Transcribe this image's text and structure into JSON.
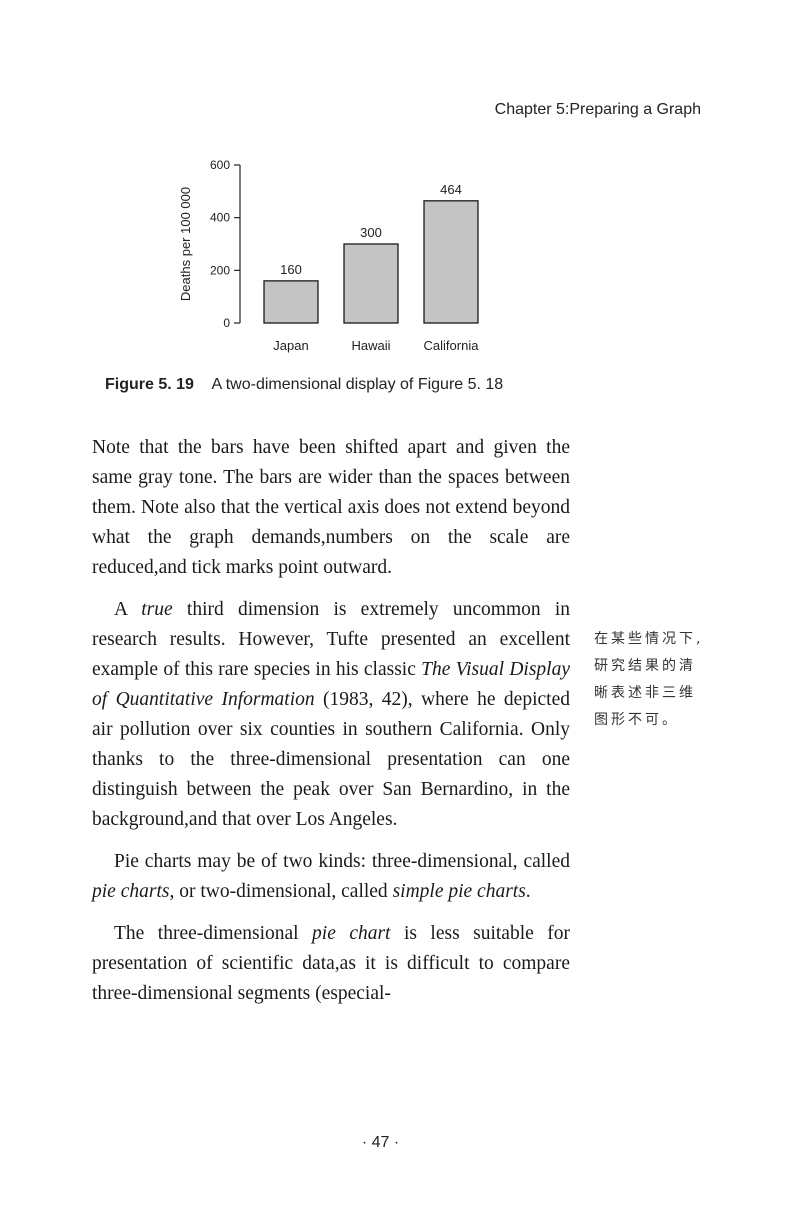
{
  "header": {
    "running_head": "Chapter 5:Preparing a Graph"
  },
  "figure": {
    "label": "Figure 5. 19",
    "caption": "A two-dimensional display of Figure 5. 18"
  },
  "chart_data": {
    "type": "bar",
    "categories": [
      "Japan",
      "Hawaii",
      "California"
    ],
    "values": [
      160,
      300,
      464
    ],
    "data_labels": [
      "160",
      "300",
      "464"
    ],
    "ylabel": "Deaths per 100 000",
    "xlabel": "",
    "ylim": [
      0,
      600
    ],
    "yticks": [
      0,
      200,
      400,
      600
    ],
    "bar_color": "#c4c4c4",
    "grid": false
  },
  "body": {
    "p1": "Note that the bars have been shifted apart and given the same gray tone. The bars are wider than the spaces between them. Note also that the vertical axis does not extend beyond what the graph demands,numbers on the scale are reduced,and tick marks point outward.",
    "p2": {
      "t1": "true",
      "t2": " third dimension is extremely uncommon in research results. However, Tufte presented an excellent example of this rare species in his classic ",
      "t3": "The Visual Display of Quantitative Information",
      "t4": " (1983, 42), where he depicted air pollution over six counties in southern California. Only thanks to the three-dimensional presentation can one distinguish between the peak over San Bernardino, in the background,and that over Los Angeles.",
      "t0": "A "
    },
    "p3": {
      "t0": "Pie charts may be of two kinds: three-dimensional, called ",
      "t1": "pie charts",
      "t2": ", or two-dimensional, called ",
      "t3": "simple pie charts",
      "t4": "."
    },
    "p4": {
      "t0": "The three-dimensional ",
      "t1": "pie chart",
      "t2": " is less suitable for presentation of scientific data,as it is difficult to compare three-dimensional segments (especial-"
    }
  },
  "margin_note": "在某些情况下,研究结果的清晰表述非三维图形不可。",
  "footer": {
    "page_number": "· 47 ·"
  }
}
